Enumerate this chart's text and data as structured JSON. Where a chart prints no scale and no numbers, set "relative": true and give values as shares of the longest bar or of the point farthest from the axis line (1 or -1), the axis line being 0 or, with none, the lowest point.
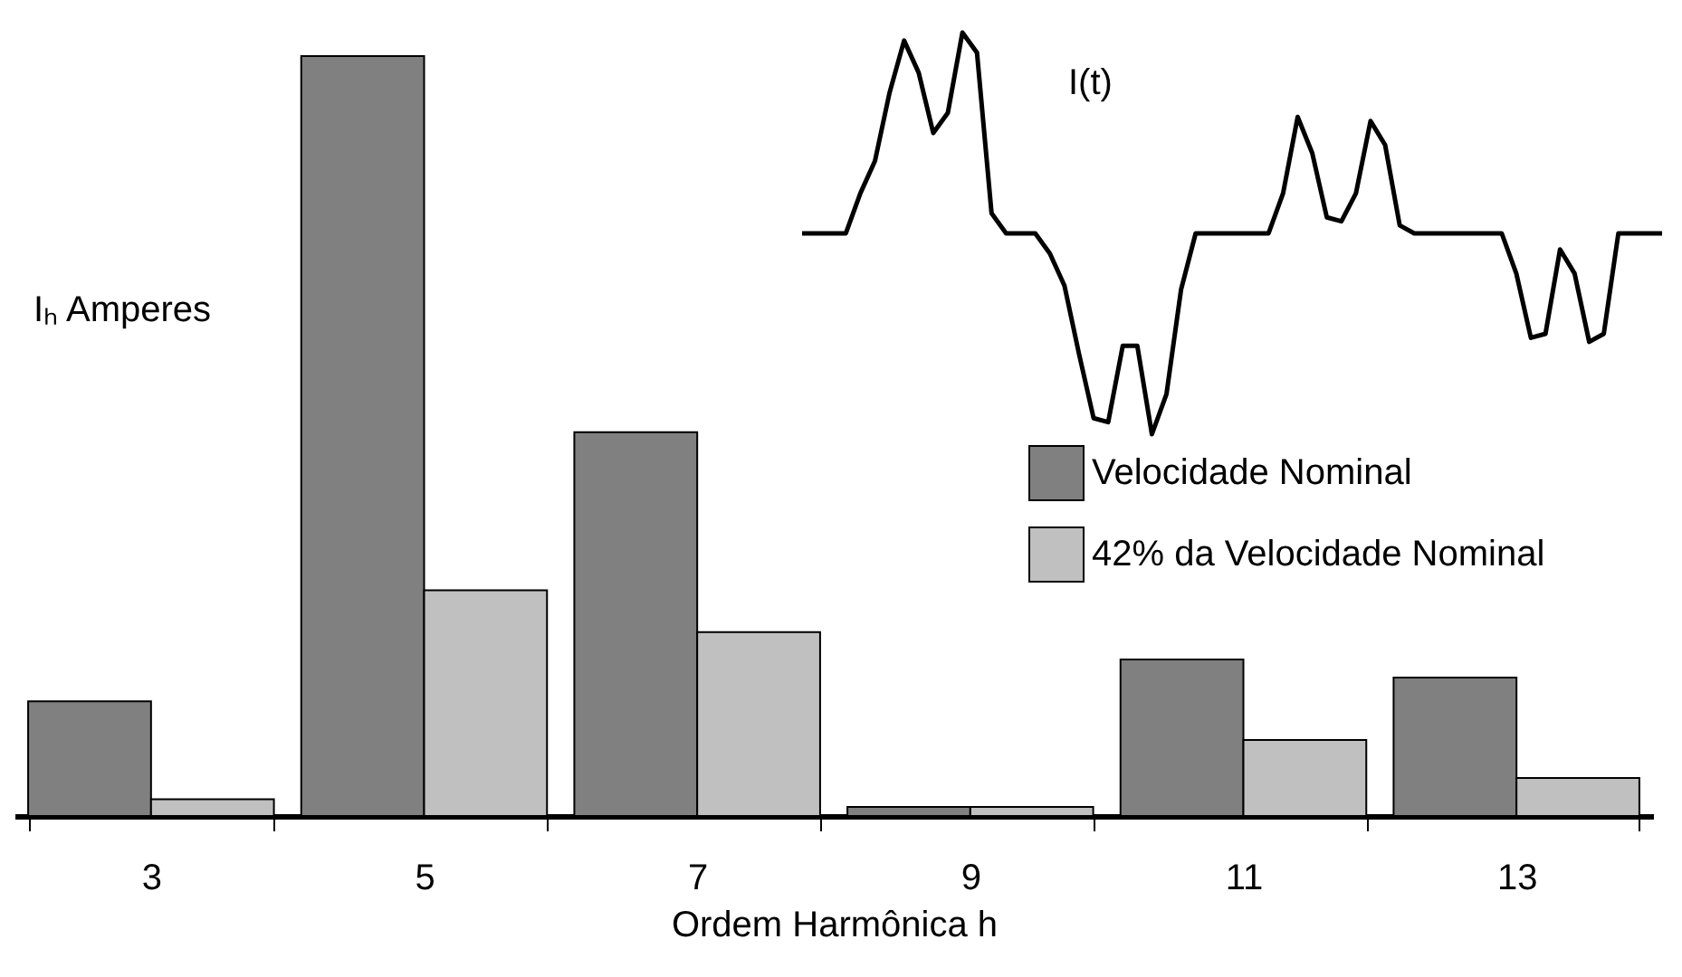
{
  "chart_data": [
    {
      "type": "bar",
      "relative": true,
      "xlabel": "Ordem Harmônica h",
      "ylabel": "Iₕ Amperes",
      "categories": [
        "3",
        "5",
        "7",
        "9",
        "11",
        "13"
      ],
      "series": [
        {
          "name": "Velocidade Nominal",
          "color": "#808080",
          "values": [
            0.151,
            1,
            0.505,
            0.012,
            0.206,
            0.182
          ]
        },
        {
          "name": "42% da Velocidade Nominal",
          "color": "#c0c0c0",
          "values": [
            0.022,
            0.297,
            0.242,
            0.012,
            0.1,
            0.05
          ]
        }
      ],
      "legend": "right"
    },
    {
      "type": "line",
      "relative": true,
      "annotations": [
        "I(t)"
      ],
      "categories": [
        null,
        null,
        null,
        null,
        null,
        null,
        null,
        null,
        null,
        null,
        null,
        null,
        null,
        null,
        null,
        null,
        null,
        null,
        null,
        null,
        null,
        null,
        null,
        null,
        null,
        null,
        null,
        null,
        null,
        null,
        null,
        null,
        null,
        null,
        null,
        null,
        null,
        null,
        null,
        null,
        null,
        null,
        null,
        null,
        null,
        null,
        null,
        null,
        null,
        null,
        null,
        null,
        null,
        null,
        null,
        null,
        null,
        null,
        null,
        null
      ],
      "series": [
        {
          "color": "#000000",
          "values": [
            0.5,
            0.5,
            0.5,
            0.5,
            0.6,
            0.68,
            0.85,
            0.98,
            0.9,
            0.75,
            0.8,
            1,
            0.95,
            0.55,
            0.5,
            0.5,
            0.5,
            0.45,
            0.37,
            0.2,
            0.04,
            0.03,
            0.22,
            0.22,
            0,
            0.1,
            0.36,
            0.5,
            0.5,
            0.5,
            0.5,
            0.5,
            0.5,
            0.6,
            0.79,
            0.7,
            0.54,
            0.53,
            0.6,
            0.78,
            0.72,
            0.52,
            0.5,
            0.5,
            0.5,
            0.5,
            0.5,
            0.5,
            0.5,
            0.4,
            0.24,
            0.25,
            0.46,
            0.4,
            0.23,
            0.25,
            0.5,
            0.5,
            0.5,
            0.5
          ]
        }
      ]
    }
  ]
}
